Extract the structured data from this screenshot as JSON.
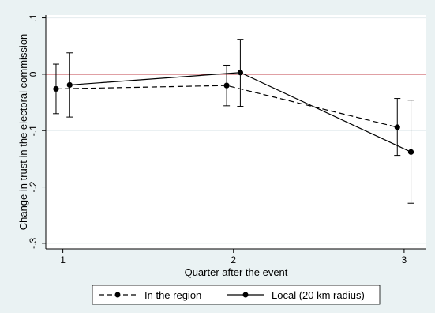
{
  "chart_data": {
    "type": "line",
    "xlabel": "Quarter after the event",
    "ylabel": "Change in trust in the electoral commission",
    "xlim": [
      0.9,
      3.13
    ],
    "ylim": [
      -0.31,
      0.105
    ],
    "x_ticks": [
      1,
      2,
      3
    ],
    "x_tick_labels": [
      "1",
      "2",
      "3"
    ],
    "y_ticks": [
      -0.3,
      -0.2,
      -0.1,
      0,
      0.1
    ],
    "y_tick_labels": [
      "-.3",
      "-.2",
      "-.1",
      "0",
      ".1"
    ],
    "reference_line": {
      "y": 0,
      "color": "#c0404a"
    },
    "grid": "horizontal",
    "legend_position": "bottom",
    "background_outer": "#eaf2f3",
    "background_plot": "#ffffff",
    "series": [
      {
        "name": "In the region",
        "line_style": "dashed",
        "color": "#000000",
        "x": [
          1,
          2,
          3
        ],
        "y": [
          -0.026,
          -0.02,
          -0.094
        ],
        "ci_low": [
          -0.07,
          -0.056,
          -0.144
        ],
        "ci_high": [
          0.018,
          0.016,
          -0.043
        ],
        "x_offset": -0.04
      },
      {
        "name": "Local (20 km radius)",
        "line_style": "solid",
        "color": "#000000",
        "x": [
          1,
          2,
          3
        ],
        "y": [
          -0.019,
          0.003,
          -0.138
        ],
        "ci_low": [
          -0.076,
          -0.057,
          -0.229
        ],
        "ci_high": [
          0.038,
          0.062,
          -0.046
        ],
        "x_offset": 0.04
      }
    ]
  }
}
